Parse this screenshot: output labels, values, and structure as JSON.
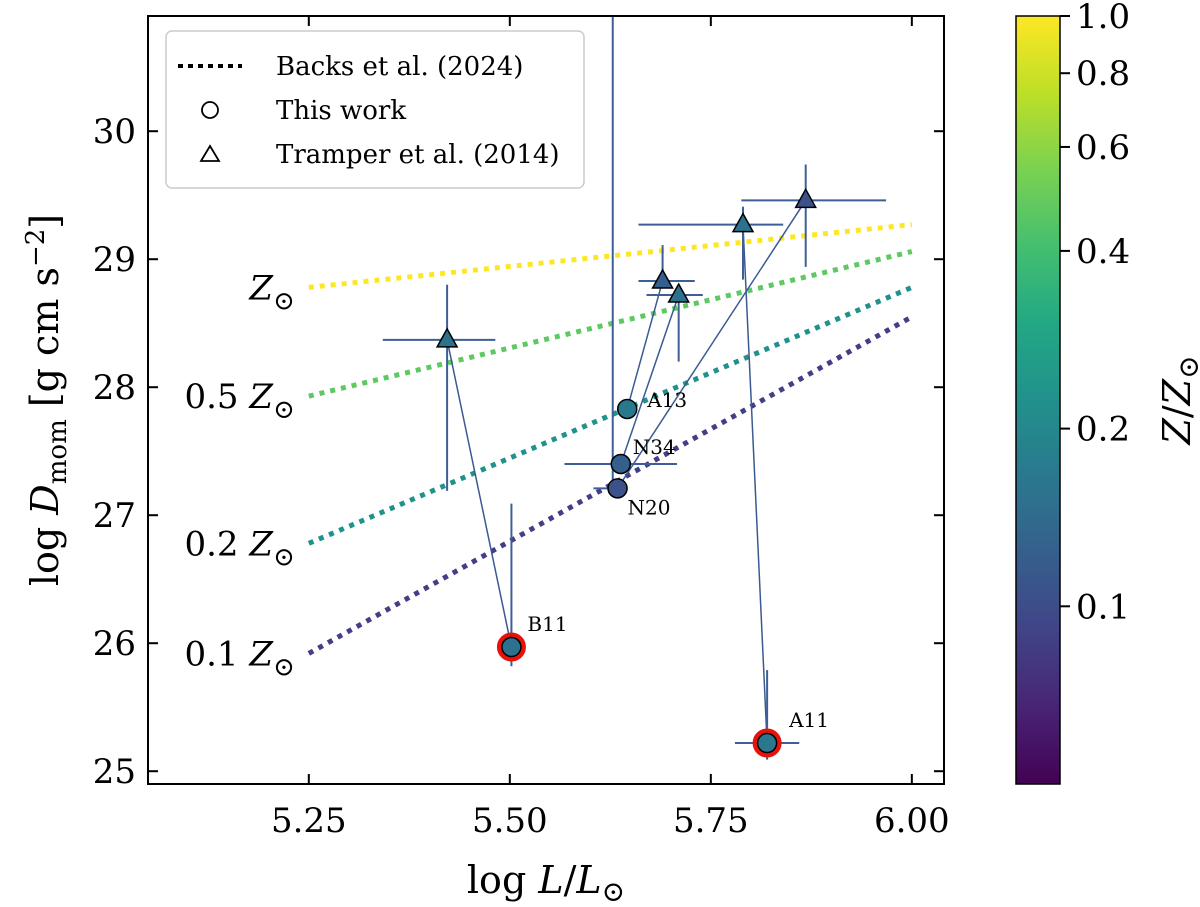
{
  "chart_data": {
    "type": "scatter",
    "xlabel": "log L/L⊙",
    "ylabel": "log D_mom [g cm s^-2]",
    "xlim": [
      5.05,
      6.04
    ],
    "ylim": [
      24.9,
      30.9
    ],
    "xticks": [
      "5.25",
      "5.50",
      "5.75",
      "6.00"
    ],
    "xtick_values": [
      5.25,
      5.5,
      5.75,
      6.0
    ],
    "yticks": [
      "25",
      "26",
      "27",
      "28",
      "29",
      "30"
    ],
    "ytick_values": [
      25,
      26,
      27,
      28,
      29,
      30
    ],
    "legend": {
      "position": "top-left",
      "entries": [
        {
          "marker": "dotted-line",
          "label": "Backs et al. (2024)"
        },
        {
          "marker": "circle",
          "label": "This work"
        },
        {
          "marker": "triangle",
          "label": "Tramper et al. (2014)"
        }
      ]
    },
    "relations": [
      {
        "label": "Z",
        "prefix": "",
        "z": 1.0,
        "color": "#fde725",
        "x0": 5.25,
        "y0": 28.78,
        "x1": 6.0,
        "y1": 29.27
      },
      {
        "label": "Z",
        "prefix": "0.5 ",
        "z": 0.5,
        "color": "#5ec962",
        "x0": 5.25,
        "y0": 27.93,
        "x1": 6.0,
        "y1": 29.06
      },
      {
        "label": "Z",
        "prefix": "0.2 ",
        "z": 0.2,
        "color": "#21918c",
        "x0": 5.25,
        "y0": 26.78,
        "x1": 6.0,
        "y1": 28.78
      },
      {
        "label": "Z",
        "prefix": "0.1 ",
        "z": 0.1,
        "color": "#433e85",
        "x0": 5.25,
        "y0": 25.92,
        "x1": 6.0,
        "y1": 28.55
      }
    ],
    "this_work": [
      {
        "name": "A13",
        "x": 5.646,
        "y": 27.83,
        "xerr": [
          0.0,
          0.0
        ],
        "yerr": [
          0.0,
          0.0
        ],
        "color": "#2a788e",
        "highlight": false
      },
      {
        "name": "N34",
        "x": 5.638,
        "y": 27.4,
        "xerr": [
          0.07,
          0.07
        ],
        "yerr": [
          0.0,
          0.0
        ],
        "color": "#355f8d",
        "highlight": false
      },
      {
        "name": "N20",
        "x": 5.634,
        "y": 27.21,
        "xerr": [
          0.03,
          0.0
        ],
        "yerr": [
          0.0,
          0.0
        ],
        "color": "#3b528b",
        "highlight": false
      },
      {
        "name": "B11",
        "x": 5.502,
        "y": 25.97,
        "xerr": [
          0.0,
          0.0
        ],
        "yerr": [
          0.15,
          1.12
        ],
        "color": "#2c728e",
        "highlight": true
      },
      {
        "name": "A11",
        "x": 5.82,
        "y": 25.22,
        "xerr": [
          0.04,
          0.04
        ],
        "yerr": [
          0.13,
          0.57
        ],
        "color": "#2a788e",
        "highlight": true
      }
    ],
    "tramper": [
      {
        "x": 5.422,
        "y": 28.37,
        "xerr": [
          0.08,
          0.06
        ],
        "yerr": [
          1.18,
          0.43
        ],
        "color": "#2c728e"
      },
      {
        "x": 5.69,
        "y": 28.83,
        "xerr": [
          0.03,
          0.04
        ],
        "yerr": [
          0.0,
          0.28
        ],
        "color": "#355f8d"
      },
      {
        "x": 5.71,
        "y": 28.72,
        "xerr": [
          0.04,
          0.03
        ],
        "yerr": [
          0.52,
          0.0
        ],
        "color": "#2c728e"
      },
      {
        "x": 5.79,
        "y": 29.27,
        "xerr": [
          0.13,
          0.05
        ],
        "yerr": [
          0.43,
          0.14
        ],
        "color": "#2c728e"
      },
      {
        "x": 5.868,
        "y": 29.46,
        "xerr": [
          0.08,
          0.1
        ],
        "yerr": [
          0.52,
          0.28
        ],
        "color": "#3b528b"
      }
    ],
    "n34_big_errorbar": {
      "x": 5.628,
      "y_low": 27.2,
      "y_high": 30.9
    },
    "connections": [
      [
        {
          "x": 5.422,
          "y": 28.37
        },
        {
          "x": 5.502,
          "y": 25.97
        }
      ],
      [
        {
          "x": 5.79,
          "y": 29.27
        },
        {
          "x": 5.82,
          "y": 25.22
        }
      ],
      [
        {
          "x": 5.69,
          "y": 28.83
        },
        {
          "x": 5.646,
          "y": 27.83
        }
      ],
      [
        {
          "x": 5.71,
          "y": 28.72
        },
        {
          "x": 5.638,
          "y": 27.4
        }
      ],
      [
        {
          "x": 5.868,
          "y": 29.46
        },
        {
          "x": 5.634,
          "y": 27.21
        }
      ]
    ],
    "colorbar": {
      "label": "Z/Z⊙",
      "scale": "log",
      "min": 0.05,
      "max": 1.0,
      "ticks": [
        "0.1",
        "0.2",
        "0.4",
        "0.6",
        "0.8",
        "1.0"
      ],
      "tick_values": [
        0.1,
        0.2,
        0.4,
        0.6,
        0.8,
        1.0
      ],
      "colormap": "viridis"
    }
  }
}
